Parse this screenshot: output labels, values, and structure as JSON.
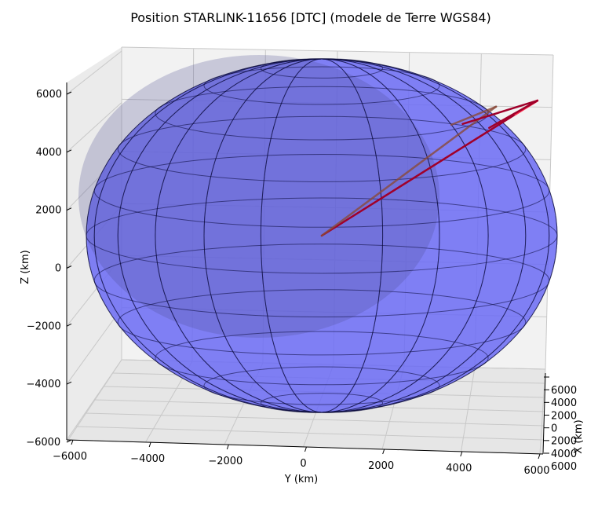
{
  "chart_data": {
    "type": "scatter",
    "projection": "3d",
    "title": "Position STARLINK-11656 [DTC] (modele de Terre WGS84)",
    "xlabel": "X (km)",
    "ylabel": "Y (km)",
    "zlabel": "Z (km)",
    "xlim": [
      -6000,
      6000
    ],
    "ylim": [
      -6000,
      6000
    ],
    "zlim": [
      -6000,
      6000
    ],
    "x_ticks": [
      "6000",
      "4000",
      "2000",
      "0",
      "2000",
      "4000",
      "6000"
    ],
    "y_ticks": [
      "−6000",
      "−4000",
      "−2000",
      "0",
      "2000",
      "4000",
      "6000"
    ],
    "z_ticks": [
      "6000",
      "4000",
      "2000",
      "0",
      "−2000",
      "−4000",
      "−6000"
    ],
    "grid": true,
    "ellipsoid": {
      "model": "WGS84",
      "equatorial_radius_km": 6378.137,
      "polar_radius_km": 6356.752,
      "face_color": "#6b6bf5",
      "edge_color": "#0a0a3a"
    },
    "vectors": [
      {
        "color": "#a0002a",
        "from": [
          0,
          0,
          0
        ],
        "to": [
          4800,
          5500,
          3900
        ]
      },
      {
        "color": "#ff3050",
        "from": [
          4500,
          5200,
          3700
        ],
        "to": [
          5100,
          5800,
          4100
        ]
      },
      {
        "color": "#8a4a3a",
        "from": [
          0,
          0,
          0
        ],
        "to": [
          4300,
          4700,
          4000
        ]
      },
      {
        "color": "#a0002a",
        "from": [
          5100,
          5800,
          4100
        ],
        "to": [
          3900,
          4500,
          3300
        ]
      },
      {
        "color": "#a0002a",
        "from": [
          5100,
          5800,
          4100
        ],
        "to": [
          3500,
          3800,
          3500
        ]
      },
      {
        "color": "#8a4a3a",
        "from": [
          4300,
          4700,
          4000
        ],
        "to": [
          3300,
          3500,
          3500
        ]
      }
    ],
    "colors": {
      "arrow_dark": "#a0002a",
      "arrow_bright": "#ff3050",
      "arrow_brown": "#8a4a3a",
      "pane": "#f2f2f2",
      "grid": "#c8c8c8"
    }
  }
}
